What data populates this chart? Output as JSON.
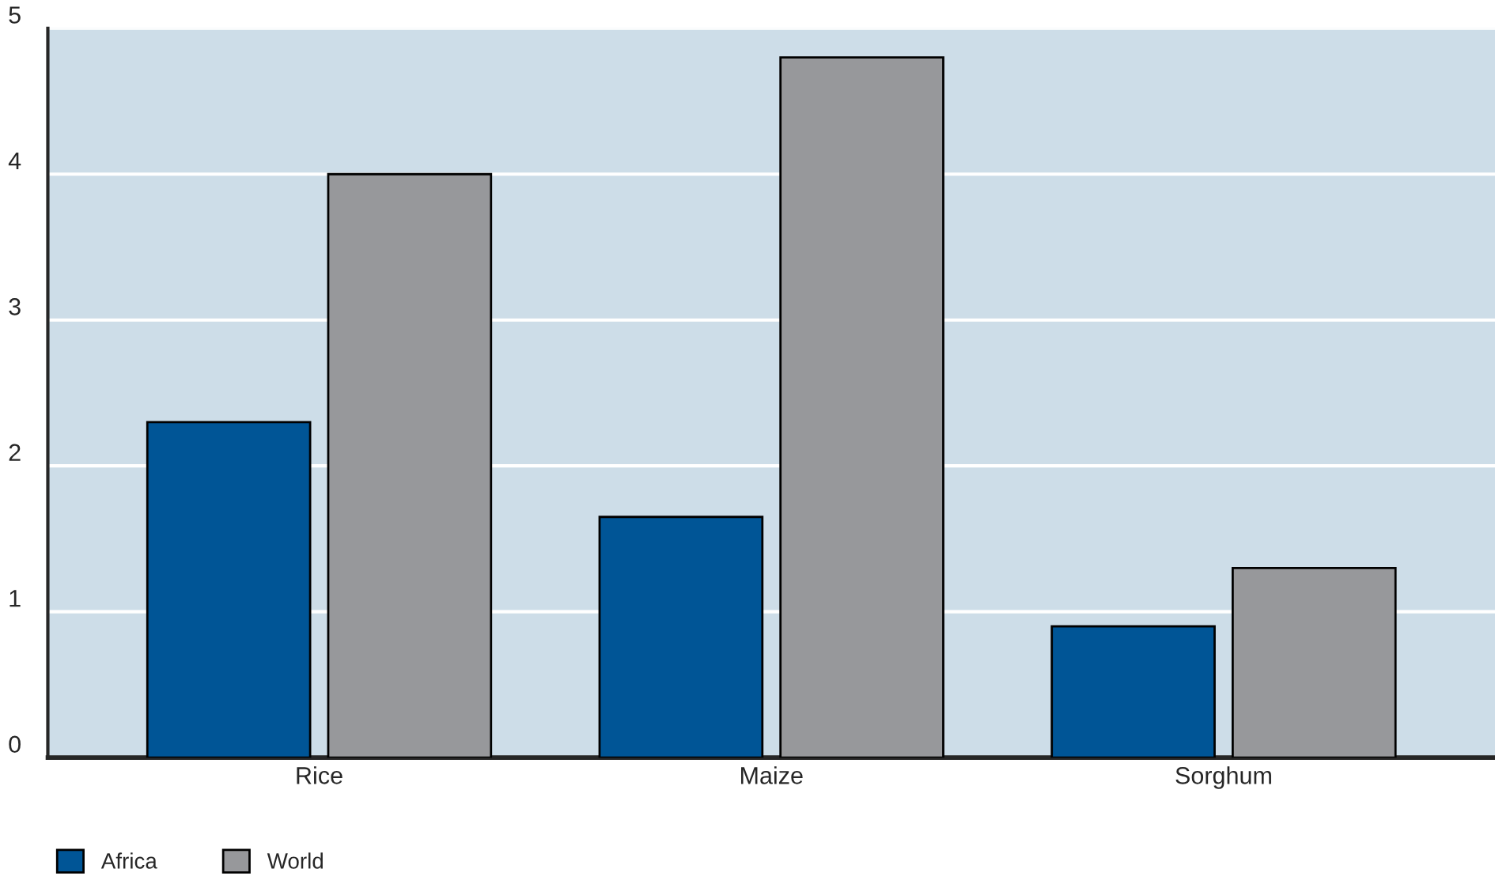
{
  "chart_data": {
    "type": "bar",
    "categories": [
      "Rice",
      "Maize",
      "Sorghum"
    ],
    "series": [
      {
        "name": "Africa",
        "color": "#005596",
        "values": [
          2.3,
          1.65,
          0.9
        ]
      },
      {
        "name": "World",
        "color": "#97989b",
        "values": [
          4.0,
          4.8,
          1.3
        ]
      }
    ],
    "ylim": [
      0,
      5
    ],
    "yticks": [
      0,
      1,
      2,
      3,
      4,
      5
    ],
    "grid": "y",
    "legend": "bottom left"
  }
}
